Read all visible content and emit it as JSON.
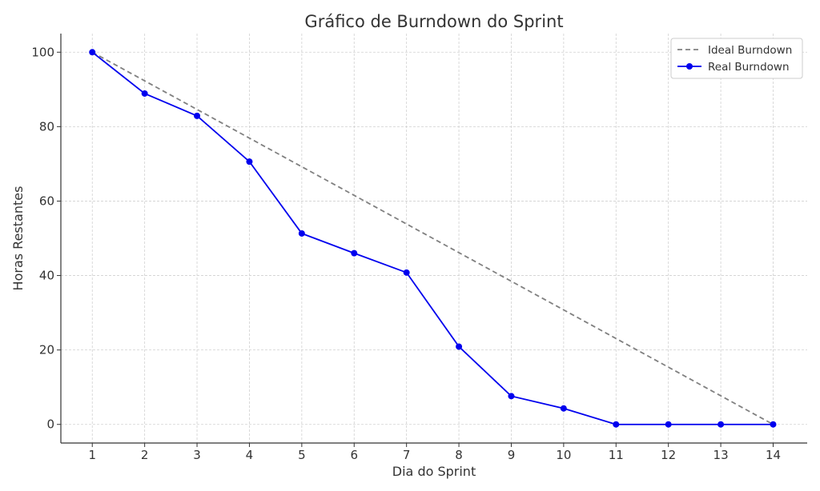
{
  "chart_data": {
    "type": "line",
    "title": "Gráfico de Burndown do Sprint",
    "xlabel": "Dia do Sprint",
    "ylabel": "Horas Restantes",
    "x": [
      1,
      2,
      3,
      4,
      5,
      6,
      7,
      8,
      9,
      10,
      11,
      12,
      13,
      14
    ],
    "xlim": [
      0.4,
      14.65
    ],
    "ylim": [
      -5,
      105
    ],
    "yticks": [
      0,
      20,
      40,
      60,
      80,
      100
    ],
    "grid": true,
    "legend_position": "top-right",
    "series": [
      {
        "name": "Ideal Burndown",
        "style": "dashed",
        "color": "#808080",
        "markers": false,
        "values": [
          100,
          92.31,
          84.62,
          76.92,
          69.23,
          61.54,
          53.85,
          46.15,
          38.46,
          30.77,
          23.08,
          15.38,
          7.69,
          0
        ]
      },
      {
        "name": "Real Burndown",
        "style": "solid",
        "color": "#0000ee",
        "markers": true,
        "values": [
          100,
          88.9,
          82.9,
          70.6,
          51.3,
          46.0,
          40.8,
          20.9,
          7.6,
          4.3,
          0,
          0,
          0,
          0
        ]
      }
    ]
  }
}
